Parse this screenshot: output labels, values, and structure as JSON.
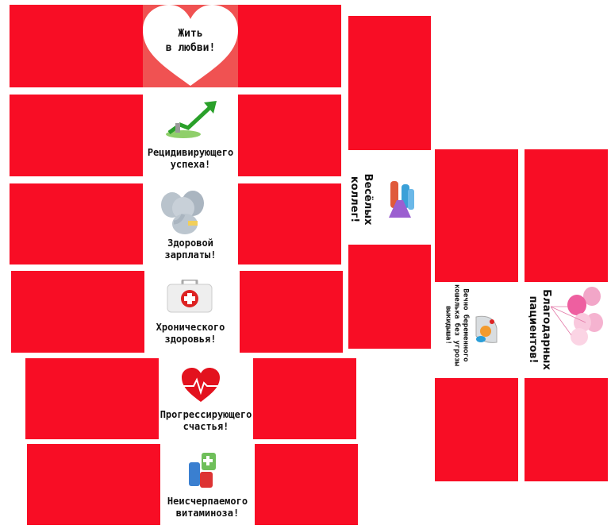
{
  "colors": {
    "block": "#f80d25",
    "heart_panel": "#f05252"
  },
  "cards": [
    {
      "label": "Жить\nв любви!",
      "icon": "heart-shape"
    },
    {
      "label": "Рецидивирующего\nуспеха!",
      "icon": "growth-chart-icon"
    },
    {
      "label": "Здоровой\nзарплаты!",
      "icon": "elephant-icon"
    },
    {
      "label": "Хронического\nздоровья!",
      "icon": "first-aid-kit-icon"
    },
    {
      "label": "Прогрессирующего\nсчастья!",
      "icon": "heartbeat-heart-icon"
    },
    {
      "label": "Неисчерпаемого\nвитаминоза!",
      "icon": "medicine-bottles-icon"
    },
    {
      "label": "Весёлых\nколлег!",
      "icon": "lab-flasks-icon"
    },
    {
      "label": "Вечно беременного\nкошелька без угрозы\nвыкидыша!",
      "icon": "baby-cap-pacifier-icon"
    },
    {
      "label": "Благодарных\nпациентов!",
      "icon": "balloons-icon"
    }
  ]
}
